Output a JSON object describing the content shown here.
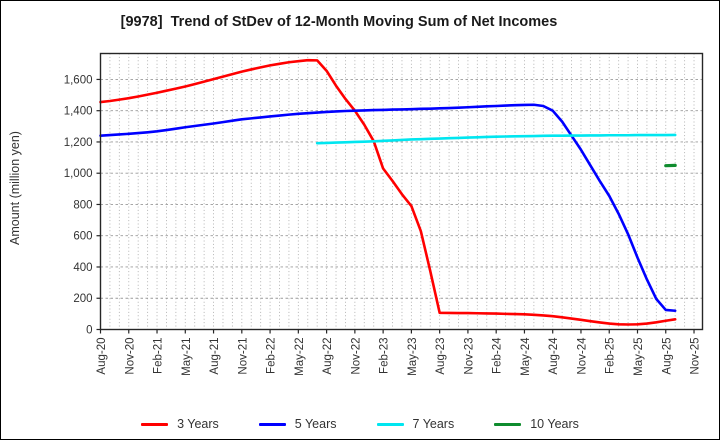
{
  "chart_data": {
    "type": "line",
    "title": "[9978]  Trend of StDev of 12-Month Moving Sum of Net Incomes",
    "ylabel": "Amount (million yen)",
    "xlabel": "",
    "grid": "on",
    "legend_position": "bottom",
    "x_start_label": "Aug-20",
    "months_per_tick": 3,
    "x_tick_labels": [
      "Aug-20",
      "Nov-20",
      "Feb-21",
      "May-21",
      "Aug-21",
      "Nov-21",
      "Feb-22",
      "May-22",
      "Aug-22",
      "Nov-22",
      "Feb-23",
      "May-23",
      "Aug-23",
      "Nov-23",
      "Feb-24",
      "May-24",
      "Aug-24",
      "Nov-24",
      "Feb-25",
      "May-25",
      "Aug-25",
      "Nov-25"
    ],
    "y_ticks": [
      0,
      200,
      400,
      600,
      800,
      1000,
      1200,
      1400,
      1600
    ],
    "y_tick_labels": [
      "0",
      "200",
      "400",
      "600",
      "800",
      "1,000",
      "1,200",
      "1,400",
      "1,600"
    ],
    "ylim": [
      0,
      1766
    ],
    "xlim_months": [
      0,
      63.9
    ],
    "series": [
      {
        "name": "3 Years",
        "color": "#ff0000",
        "start_month": 0,
        "values": [
          1455,
          1462,
          1471,
          1480,
          1491,
          1503,
          1515,
          1528,
          1541,
          1555,
          1570,
          1586,
          1602,
          1618,
          1634,
          1650,
          1664,
          1677,
          1690,
          1700,
          1710,
          1717,
          1723,
          1722,
          1655,
          1560,
          1475,
          1400,
          1310,
          1205,
          1030,
          950,
          865,
          790,
          630,
          375,
          107,
          106,
          105,
          105,
          104,
          103,
          102,
          100,
          99,
          97,
          94,
          90,
          85,
          78,
          70,
          62,
          53,
          45,
          38,
          33,
          32,
          33,
          38,
          46,
          56,
          65
        ]
      },
      {
        "name": "5 Years",
        "color": "#0000ff",
        "start_month": 0,
        "values": [
          1240,
          1244,
          1248,
          1252,
          1257,
          1262,
          1268,
          1276,
          1285,
          1294,
          1302,
          1310,
          1318,
          1327,
          1336,
          1345,
          1351,
          1357,
          1363,
          1369,
          1375,
          1380,
          1384,
          1388,
          1392,
          1395,
          1398,
          1400,
          1402,
          1404,
          1405,
          1407,
          1408,
          1410,
          1412,
          1413,
          1415,
          1417,
          1419,
          1422,
          1425,
          1428,
          1430,
          1433,
          1435,
          1437,
          1438,
          1430,
          1400,
          1330,
          1240,
          1150,
          1050,
          950,
          855,
          740,
          610,
          460,
          320,
          195,
          125,
          120
        ]
      },
      {
        "name": "7 Years",
        "color": "#00e6f0",
        "start_month": 23,
        "values": [
          1192,
          1194,
          1196,
          1198,
          1200,
          1202,
          1204,
          1207,
          1210,
          1213,
          1216,
          1218,
          1220,
          1222,
          1224,
          1226,
          1228,
          1230,
          1232,
          1234,
          1235,
          1236,
          1237,
          1238,
          1239,
          1240,
          1240,
          1241,
          1241,
          1242,
          1242,
          1243,
          1243,
          1243,
          1244,
          1244,
          1244,
          1244,
          1245
        ]
      },
      {
        "name": "10 Years",
        "color": "#0f8c2e",
        "start_month": 60,
        "values": [
          1048,
          1050
        ]
      }
    ]
  }
}
